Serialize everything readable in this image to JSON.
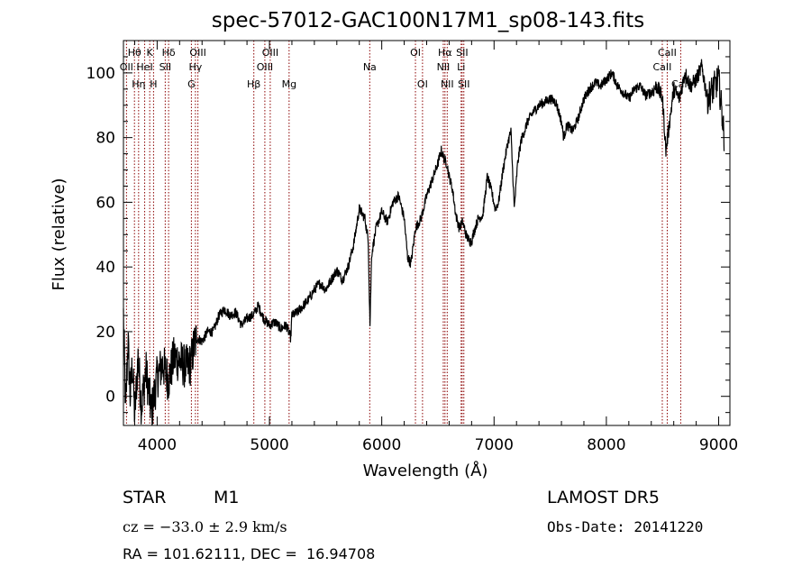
{
  "chart_data": {
    "type": "line",
    "title": "spec-57012-GAC100N17M1_sp08-143.fits",
    "xlabel": "Wavelength (Å)",
    "ylabel": "Flux (relative)",
    "xlim": [
      3700,
      9100
    ],
    "ylim": [
      -9,
      110
    ],
    "xticks": [
      4000,
      5000,
      6000,
      7000,
      8000,
      9000
    ],
    "yticks": [
      0,
      20,
      40,
      60,
      80,
      100
    ],
    "grid": false,
    "line_color": "#000000",
    "marker_color": "#8b0000",
    "spectral_lines": [
      {
        "label": "OII",
        "wavelength": 3727,
        "row": 1
      },
      {
        "label": "Hθ",
        "wavelength": 3798,
        "row": 0
      },
      {
        "label": "Hη",
        "wavelength": 3835,
        "row": 2
      },
      {
        "label": "HeI",
        "wavelength": 3889,
        "row": 1
      },
      {
        "label": "K",
        "wavelength": 3934,
        "row": 0
      },
      {
        "label": "H",
        "wavelength": 3968,
        "row": 2
      },
      {
        "label": "SII",
        "wavelength": 4072,
        "row": 1
      },
      {
        "label": "Hδ",
        "wavelength": 4102,
        "row": 0
      },
      {
        "label": "G",
        "wavelength": 4305,
        "row": 2
      },
      {
        "label": "Hγ",
        "wavelength": 4341,
        "row": 1
      },
      {
        "label": "OIII",
        "wavelength": 4363,
        "row": 0
      },
      {
        "label": "Hβ",
        "wavelength": 4861,
        "row": 2
      },
      {
        "label": "OIII",
        "wavelength": 4959,
        "row": 1
      },
      {
        "label": "OIII",
        "wavelength": 5007,
        "row": 0
      },
      {
        "label": "Mg",
        "wavelength": 5175,
        "row": 2
      },
      {
        "label": "Na",
        "wavelength": 5893,
        "row": 1
      },
      {
        "label": "OI",
        "wavelength": 6300,
        "row": 0
      },
      {
        "label": "OI",
        "wavelength": 6363,
        "row": 2
      },
      {
        "label": "NII",
        "wavelength": 6548,
        "row": 1
      },
      {
        "label": "Hα",
        "wavelength": 6563,
        "row": 0
      },
      {
        "label": "NII",
        "wavelength": 6583,
        "row": 2
      },
      {
        "label": "Li",
        "wavelength": 6707,
        "row": 1
      },
      {
        "label": "SII",
        "wavelength": 6716,
        "row": 0
      },
      {
        "label": "SII",
        "wavelength": 6731,
        "row": 2
      },
      {
        "label": "CaII",
        "wavelength": 8498,
        "row": 1
      },
      {
        "label": "CaII",
        "wavelength": 8542,
        "row": 0
      },
      {
        "label": "CaII",
        "wavelength": 8662,
        "row": 2
      }
    ],
    "series": [
      {
        "x": [
          3700,
          3720,
          3740,
          3760,
          3780,
          3800,
          3830,
          3860,
          3900,
          3950,
          4000,
          4050,
          4100,
          4150,
          4200,
          4250,
          4300,
          4330,
          4360,
          4400,
          4450,
          4500,
          4550,
          4600,
          4650,
          4700,
          4750,
          4800,
          4850,
          4870,
          4900,
          4950,
          5000,
          5050,
          5100,
          5150,
          5190,
          5200,
          5250,
          5300,
          5350,
          5400,
          5450,
          5500,
          5550,
          5600,
          5650,
          5700,
          5750,
          5800,
          5850,
          5880,
          5895,
          5910,
          5950,
          6000,
          6050,
          6100,
          6150,
          6200,
          6230,
          6260,
          6300,
          6350,
          6400,
          6450,
          6500,
          6530,
          6560,
          6580,
          6600,
          6630,
          6660,
          6690,
          6720,
          6750,
          6780,
          6800,
          6830,
          6860,
          6900,
          6940,
          6980,
          7010,
          7040,
          7080,
          7120,
          7150,
          7180,
          7210,
          7240,
          7300,
          7350,
          7400,
          7450,
          7500,
          7550,
          7600,
          7620,
          7650,
          7700,
          7750,
          7800,
          7850,
          7900,
          7950,
          8000,
          8050,
          8100,
          8150,
          8200,
          8250,
          8300,
          8350,
          8400,
          8450,
          8500,
          8530,
          8560,
          8600,
          8650,
          8700,
          8750,
          8800,
          8850,
          8900,
          8950,
          9000,
          9050
        ],
        "y": [
          25,
          -5,
          18,
          0,
          10,
          -6,
          12,
          -3,
          8,
          -5,
          6,
          10,
          5,
          12,
          11,
          9,
          10,
          16,
          18,
          17,
          20,
          20,
          25,
          27,
          25,
          26,
          22,
          24,
          25,
          26,
          28,
          24,
          22,
          23,
          21,
          22,
          18,
          25,
          26,
          28,
          30,
          33,
          35,
          33,
          36,
          39,
          36,
          40,
          47,
          58,
          55,
          48,
          22,
          44,
          52,
          57,
          54,
          60,
          62,
          55,
          43,
          41,
          52,
          55,
          62,
          67,
          72,
          76,
          73,
          72,
          68,
          64,
          56,
          52,
          54,
          50,
          48,
          48,
          52,
          55,
          56,
          68,
          63,
          58,
          60,
          70,
          78,
          82,
          58,
          72,
          79,
          85,
          88,
          90,
          91,
          92,
          91,
          85,
          80,
          84,
          82,
          86,
          92,
          95,
          97,
          96,
          98,
          100,
          96,
          94,
          92,
          95,
          96,
          93,
          94,
          96,
          92,
          76,
          84,
          95,
          92,
          100,
          96,
          98,
          102,
          92,
          95,
          98,
          80
        ]
      }
    ]
  },
  "info": {
    "object_class": "STAR",
    "subclass": "M1",
    "survey": "LAMOST DR5",
    "cz": "cz = −33.0 ± 2.9 km/s",
    "obs_date": "Obs-Date: 20141220",
    "coords": "RA = 101.62111, DEC =  16.94708"
  }
}
